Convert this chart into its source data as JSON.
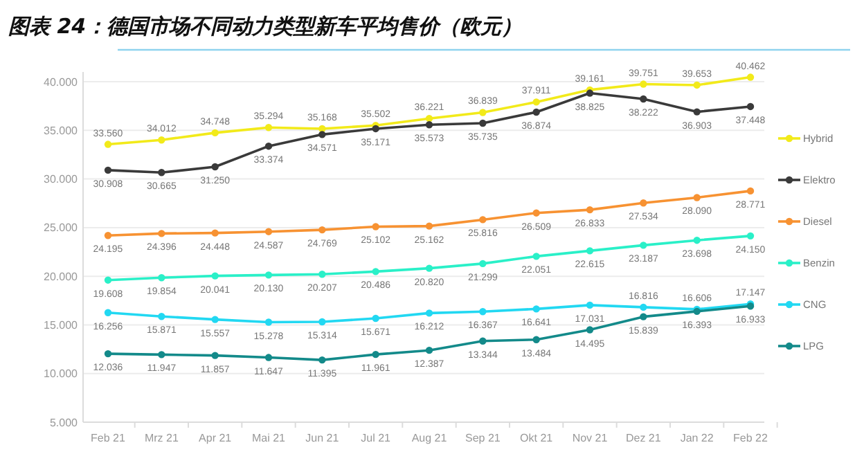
{
  "chart_data": {
    "type": "line",
    "title": "图表 24：德国市场不同动力类型新车平均售价（欧元）",
    "categories": [
      "Feb 21",
      "Mrz 21",
      "Apr 21",
      "Mai 21",
      "Jun 21",
      "Jul 21",
      "Aug 21",
      "Sep 21",
      "Okt 21",
      "Nov 21",
      "Dez 21",
      "Jan 22",
      "Feb 22"
    ],
    "ylim": [
      5000,
      41000
    ],
    "yticks": [
      {
        "value": 5000,
        "label": "5.000"
      },
      {
        "value": 10000,
        "label": "10.000"
      },
      {
        "value": 15000,
        "label": "15.000"
      },
      {
        "value": 20000,
        "label": "20.000"
      },
      {
        "value": 25000,
        "label": "25.000"
      },
      {
        "value": 30000,
        "label": "30.000"
      },
      {
        "value": 35000,
        "label": "35.000"
      },
      {
        "value": 40000,
        "label": "40.000"
      }
    ],
    "grid": "y",
    "legend": "right",
    "marker": "circle",
    "line_style": "solid",
    "series": [
      {
        "name": "Hybrid",
        "color": "#f2ea1a",
        "values": [
          33560,
          34012,
          34748,
          35294,
          35168,
          35502,
          36221,
          36839,
          37911,
          39161,
          39751,
          39653,
          40462
        ],
        "value_labels": [
          "33.560",
          "34.012",
          "34.748",
          "35.294",
          "35.168",
          "35.502",
          "36.221",
          "36.839",
          "37.911",
          "39.161",
          "39.751",
          "39.653",
          "40.462"
        ]
      },
      {
        "name": "Elektro",
        "color": "#3a3a3a",
        "values": [
          30908,
          30665,
          31250,
          33374,
          34571,
          35171,
          35573,
          35735,
          36874,
          38825,
          38222,
          36903,
          37448
        ],
        "value_labels": [
          "30.908",
          "30.665",
          "31.250",
          "33.374",
          "34.571",
          "35.171",
          "35.573",
          "35.735",
          "36.874",
          "38.825",
          "38.222",
          "36.903",
          "37.448"
        ]
      },
      {
        "name": "Diesel",
        "color": "#f79232",
        "values": [
          24195,
          24396,
          24448,
          24587,
          24769,
          25102,
          25162,
          25816,
          26509,
          26833,
          27534,
          28090,
          28771
        ],
        "value_labels": [
          "24.195",
          "24.396",
          "24.448",
          "24.587",
          "24.769",
          "25.102",
          "25.162",
          "25.816",
          "26.509",
          "26.833",
          "27.534",
          "28.090",
          "28.771"
        ]
      },
      {
        "name": "Benzin",
        "color": "#2af0c8",
        "values": [
          19608,
          19854,
          20041,
          20130,
          20207,
          20486,
          20820,
          21299,
          22051,
          22615,
          23187,
          23698,
          24150
        ],
        "value_labels": [
          "19.608",
          "19.854",
          "20.041",
          "20.130",
          "20.207",
          "20.486",
          "20.820",
          "21.299",
          "22.051",
          "22.615",
          "23.187",
          "23.698",
          "24.150"
        ]
      },
      {
        "name": "CNG",
        "color": "#22d8f2",
        "values": [
          16256,
          15871,
          15557,
          15278,
          15314,
          15671,
          16212,
          16367,
          16641,
          17031,
          16816,
          16606,
          17147
        ],
        "value_labels": [
          "16.256",
          "15.871",
          "15.557",
          "15.278",
          "15.314",
          "15.671",
          "16.212",
          "16.367",
          "16.641",
          "17.031",
          "16.816",
          "16.606",
          "17.147"
        ]
      },
      {
        "name": "LPG",
        "color": "#138a8a",
        "values": [
          12036,
          11947,
          11857,
          11647,
          11395,
          11961,
          12387,
          13344,
          13484,
          14495,
          15839,
          16393,
          16933
        ],
        "value_labels": [
          "12.036",
          "11.947",
          "11.857",
          "11.647",
          "11.395",
          "11.961",
          "12.387",
          "13.344",
          "13.484",
          "14.495",
          "15.839",
          "16.393",
          "16.933"
        ]
      }
    ]
  }
}
